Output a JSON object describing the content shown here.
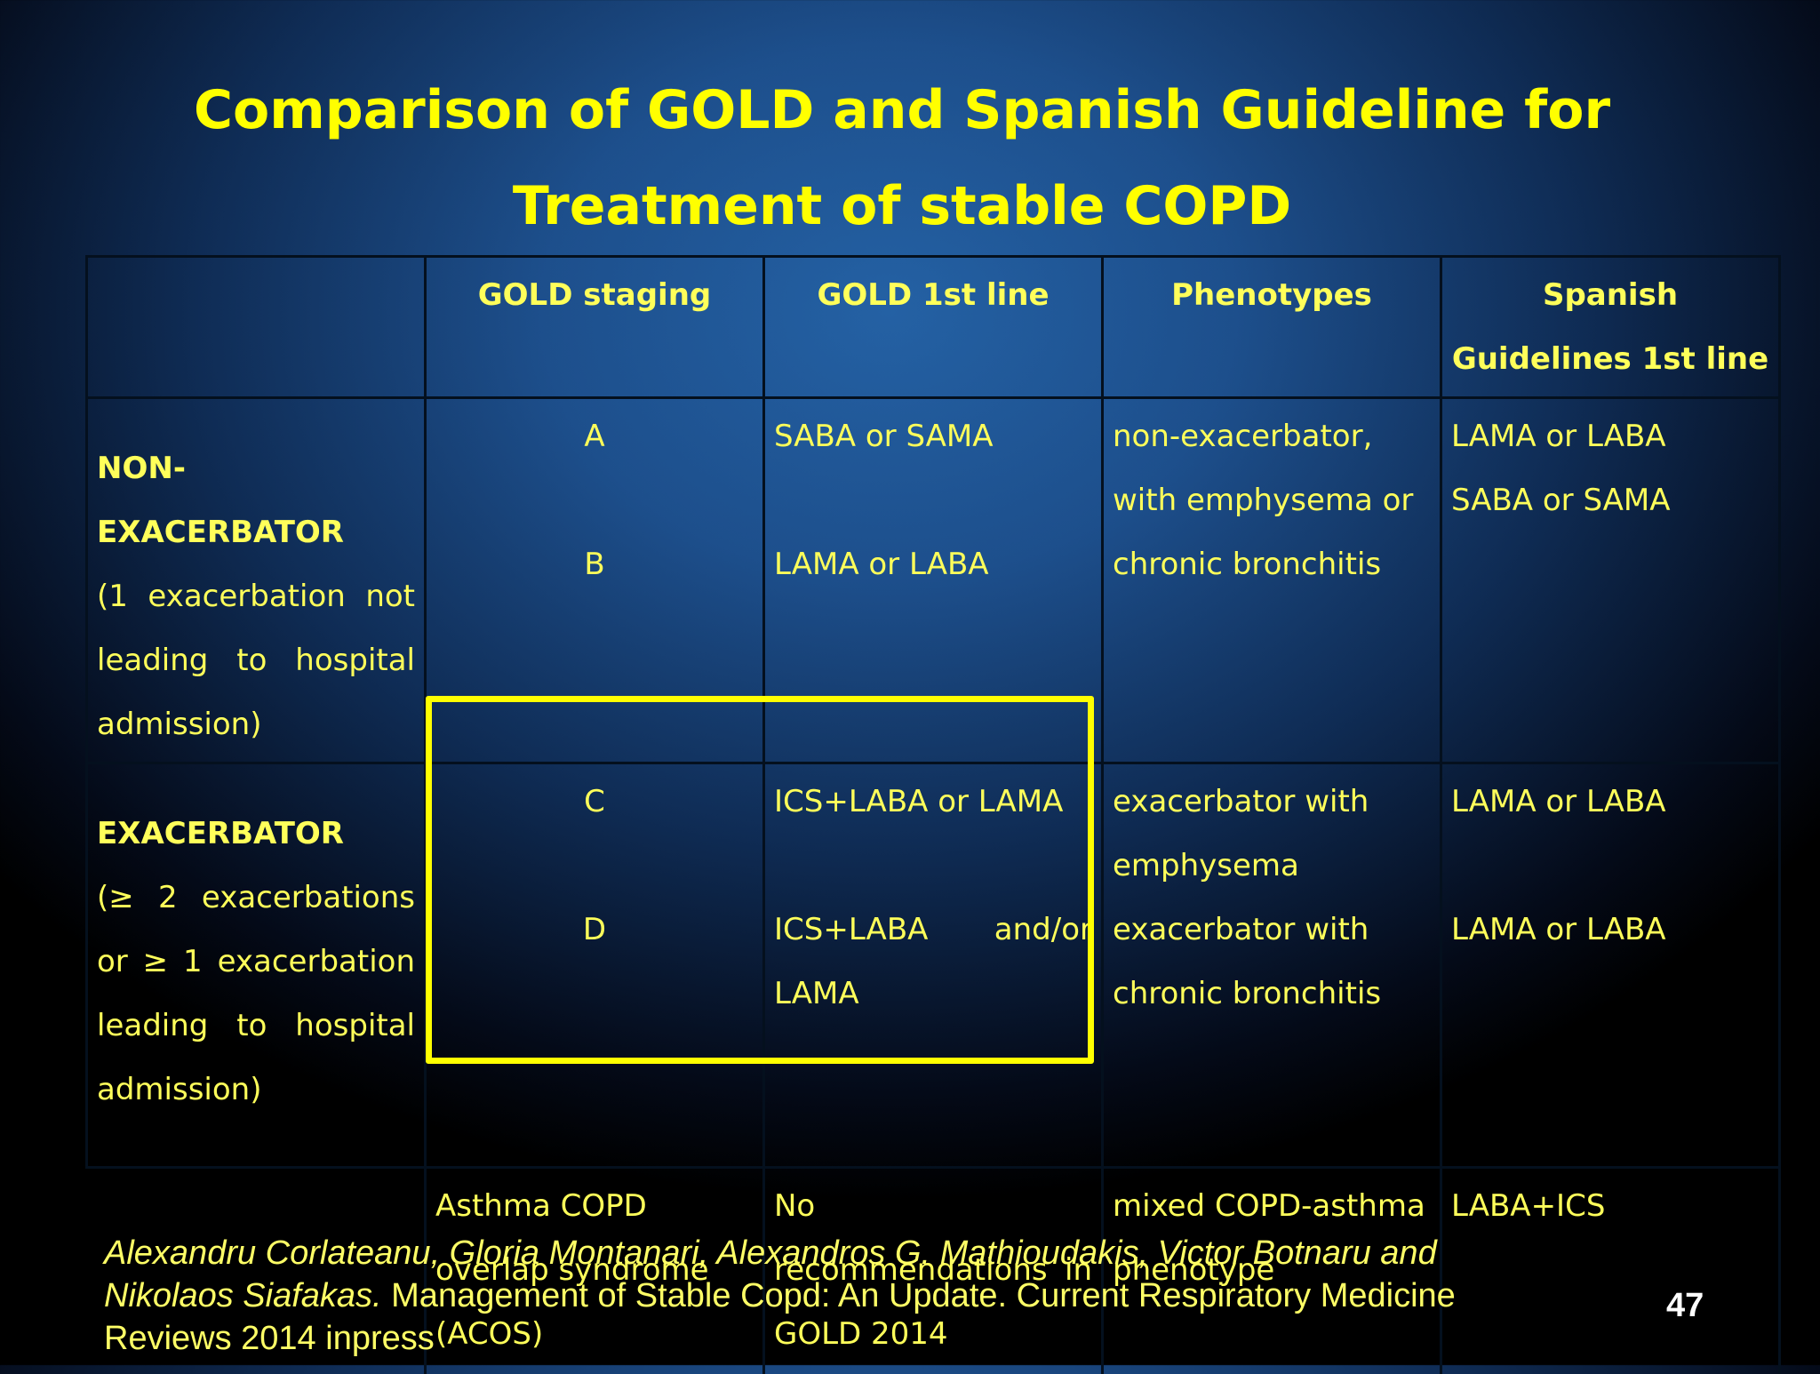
{
  "title": {
    "line1": "Comparison of GOLD and Spanish Guideline for",
    "line2": "Treatment of stable COPD"
  },
  "table": {
    "headers": [
      "",
      "GOLD staging",
      "GOLD 1st line",
      "Phenotypes",
      "Spanish Guidelines 1st line"
    ],
    "rows": [
      {
        "label_bold": "NON-EXACERBATOR",
        "label_text": "(1 exacerbation not leading to hospital admission)",
        "stages": [
          "A",
          "B"
        ],
        "gold_first_line": [
          "SABA or SAMA",
          "LAMA or LABA"
        ],
        "phenotypes": [
          "non-exacerbator, with emphysema or chronic bronchitis"
        ],
        "spanish_first_line": [
          "LAMA or LABA",
          "SABA or SAMA"
        ]
      },
      {
        "label_bold": "EXACERBATOR",
        "label_text": "(≥ 2 exacerbations or ≥ 1 exacerbation leading to hospital admission)",
        "stages": [
          "C",
          "D"
        ],
        "gold_first_line": [
          "ICS+LABA or LAMA",
          "ICS+LABA and/or LAMA"
        ],
        "phenotypes": [
          "exacerbator with emphysema",
          "exacerbator with chronic bronchitis"
        ],
        "spanish_first_line": [
          "LAMA or LABA",
          "LAMA or LABA"
        ]
      },
      {
        "label_bold": "",
        "label_text": "",
        "stages": [
          "Asthma COPD overlap syndrome (ACOS)"
        ],
        "gold_first_line": [
          "No recommendations in GOLD 2014"
        ],
        "phenotypes": [
          "mixed COPD-asthma phenotype"
        ],
        "spanish_first_line": [
          "LABA+ICS"
        ]
      }
    ]
  },
  "citation": {
    "authors": "Alexandru Corlateanu, Gloria Montanari, Alexandros G. Mathioudakis, Victor Botnaru and Nikolaos Siafakas.",
    "reference": "Management of Stable Copd: An Update. Current Respiratory Medicine Reviews 2014 inpress"
  },
  "page_number": "47",
  "colors": {
    "title": "#ffff00",
    "text": "#ffff5a",
    "highlight_box": "#ffff00",
    "background_center": "#2461a4",
    "background_edge": "#000000"
  }
}
